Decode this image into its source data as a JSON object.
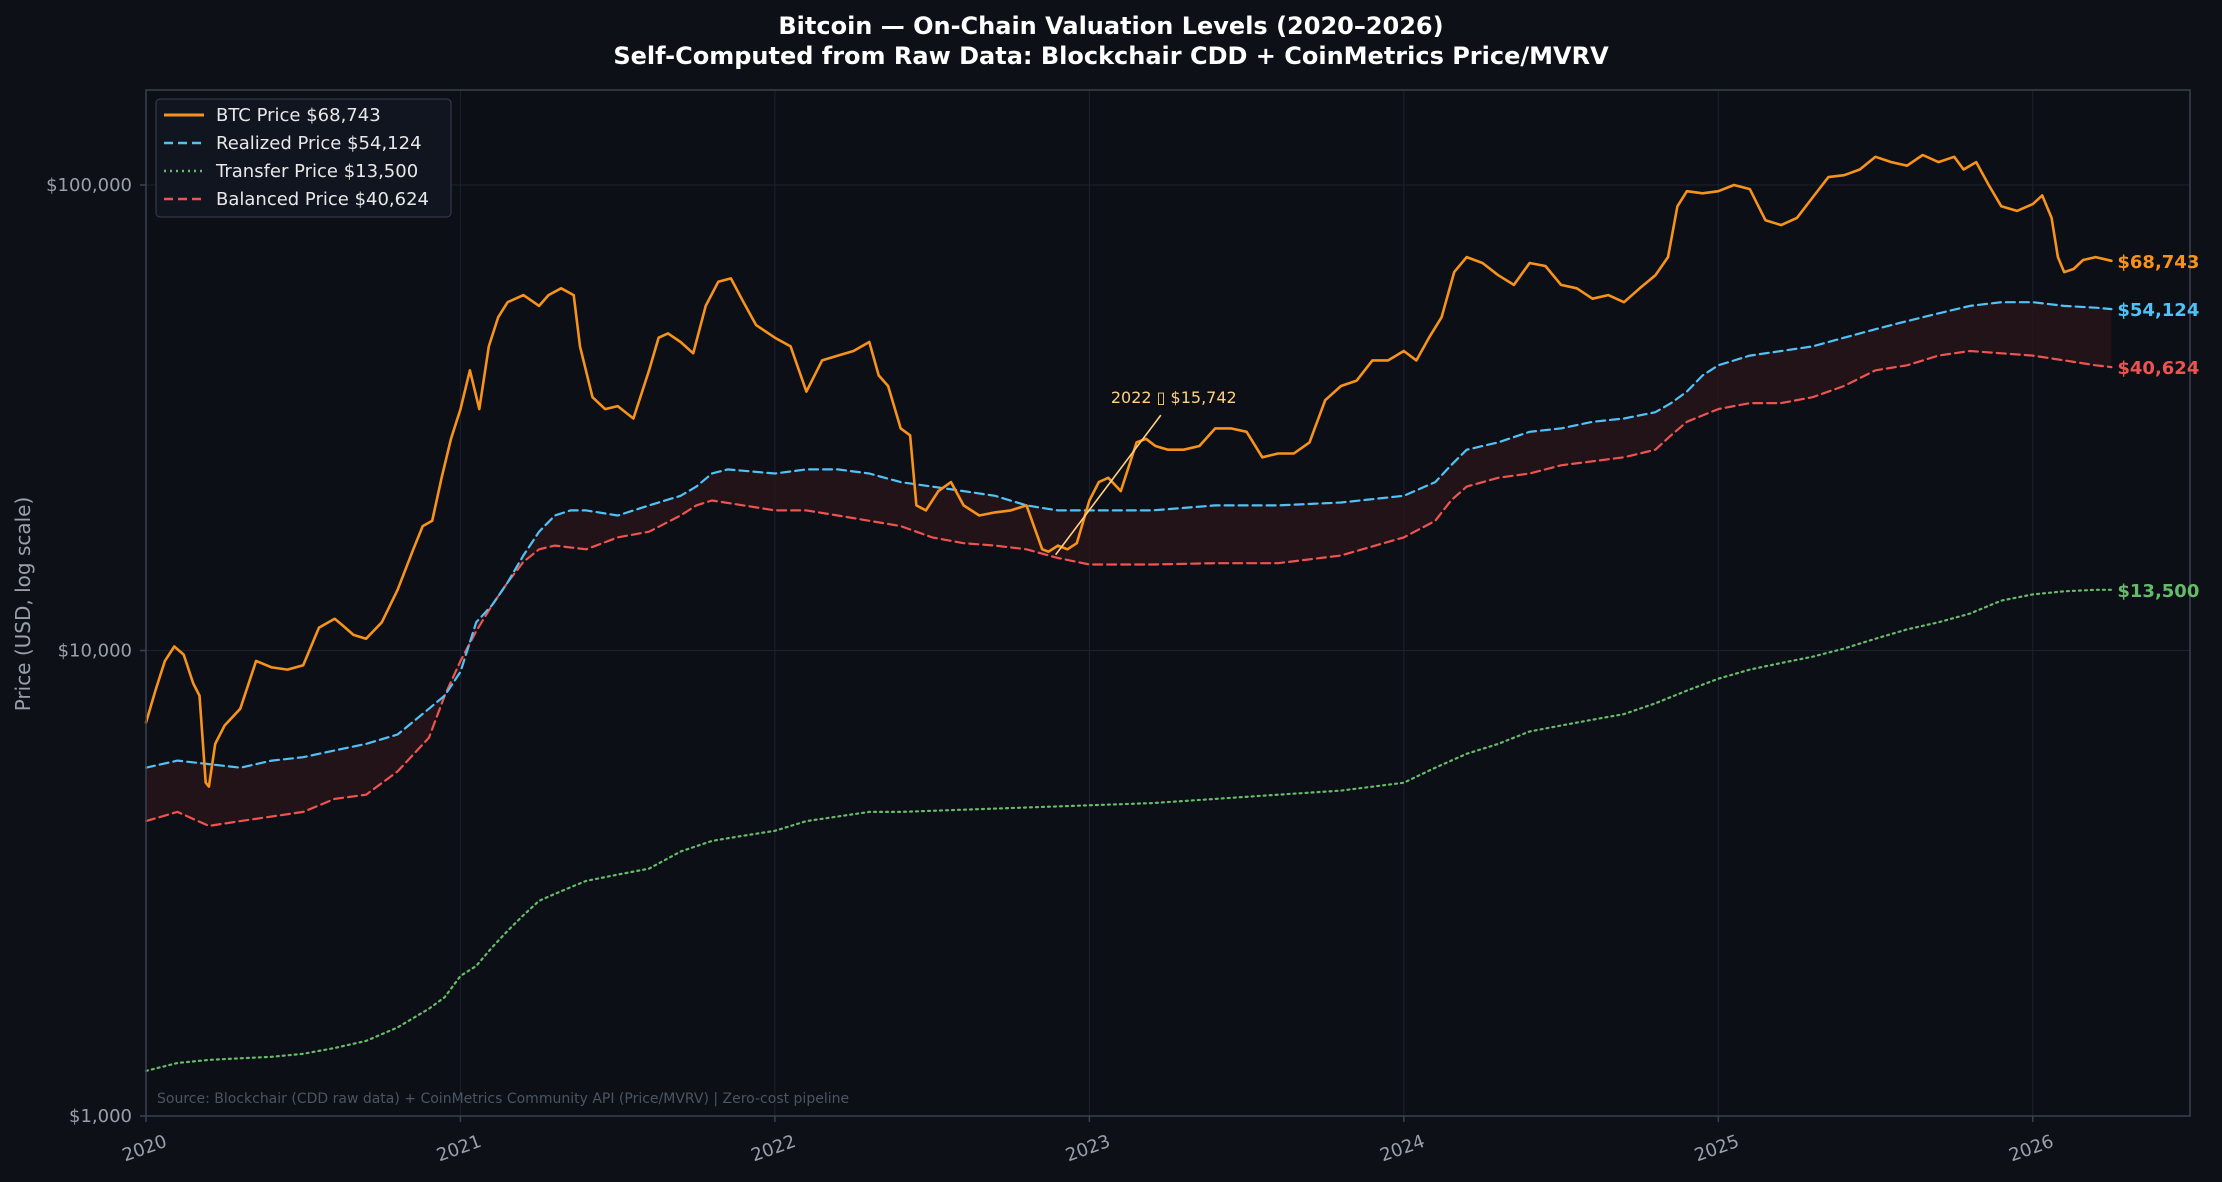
{
  "colors": {
    "background": "#0d1017",
    "axes_background": "#0c0f15",
    "grid": "#1c2230",
    "spine": "#3a4150",
    "text": "#ffffff",
    "tick": "#9aa0a8",
    "btc": "#f7931a",
    "realized": "#4fc3f7",
    "transfer": "#66bb6a",
    "balanced": "#ef5350",
    "band": "#2a151b",
    "annotation": "#ffd180",
    "source": "#4b5563"
  },
  "chart_data": {
    "type": "line",
    "title": "Bitcoin — On-Chain Valuation Levels  (2020–2026)",
    "subtitle": "Self-Computed from Raw Data: Blockchair CDD + CoinMetrics Price/MVRV",
    "ylabel": "Price (USD, log scale)",
    "xlabel": "",
    "y_scale": "log",
    "ylim": [
      1000,
      160000
    ],
    "xlim": [
      2020.0,
      2026.5
    ],
    "grid": true,
    "legend_position": "upper-left",
    "x_ticks": [
      {
        "value": 2020,
        "label": "2020"
      },
      {
        "value": 2021,
        "label": "2021"
      },
      {
        "value": 2022,
        "label": "2022"
      },
      {
        "value": 2023,
        "label": "2023"
      },
      {
        "value": 2024,
        "label": "2024"
      },
      {
        "value": 2025,
        "label": "2025"
      },
      {
        "value": 2026,
        "label": "2026"
      }
    ],
    "y_ticks": [
      {
        "value": 1000,
        "label": "$1,000"
      },
      {
        "value": 10000,
        "label": "$10,000"
      },
      {
        "value": 100000,
        "label": "$100,000"
      }
    ],
    "band": {
      "upper": "realized",
      "lower": "balanced"
    },
    "series": [
      {
        "key": "btc",
        "name": "BTC Price",
        "legend_label": "BTC Price  $68,743",
        "end_label": "$68,743",
        "style": "solid",
        "width": 2.6,
        "x": [
          2020.0,
          2020.03,
          2020.06,
          2020.09,
          2020.12,
          2020.15,
          2020.17,
          2020.19,
          2020.2,
          2020.22,
          2020.25,
          2020.3,
          2020.35,
          2020.4,
          2020.45,
          2020.5,
          2020.55,
          2020.6,
          2020.62,
          2020.66,
          2020.7,
          2020.75,
          2020.8,
          2020.85,
          2020.88,
          2020.91,
          2020.94,
          2020.97,
          2021.0,
          2021.03,
          2021.06,
          2021.09,
          2021.12,
          2021.15,
          2021.2,
          2021.25,
          2021.28,
          2021.32,
          2021.36,
          2021.38,
          2021.42,
          2021.46,
          2021.5,
          2021.55,
          2021.6,
          2021.63,
          2021.66,
          2021.7,
          2021.74,
          2021.78,
          2021.82,
          2021.86,
          2021.9,
          2021.94,
          2022.0,
          2022.05,
          2022.1,
          2022.15,
          2022.2,
          2022.25,
          2022.3,
          2022.33,
          2022.36,
          2022.4,
          2022.43,
          2022.45,
          2022.48,
          2022.52,
          2022.56,
          2022.6,
          2022.65,
          2022.7,
          2022.75,
          2022.8,
          2022.85,
          2022.87,
          2022.9,
          2022.93,
          2022.96,
          2023.0,
          2023.03,
          2023.06,
          2023.1,
          2023.15,
          2023.18,
          2023.21,
          2023.25,
          2023.3,
          2023.35,
          2023.4,
          2023.45,
          2023.5,
          2023.55,
          2023.6,
          2023.65,
          2023.7,
          2023.75,
          2023.8,
          2023.85,
          2023.9,
          2023.95,
          2024.0,
          2024.04,
          2024.08,
          2024.12,
          2024.16,
          2024.2,
          2024.25,
          2024.3,
          2024.35,
          2024.4,
          2024.45,
          2024.5,
          2024.55,
          2024.6,
          2024.65,
          2024.7,
          2024.75,
          2024.8,
          2024.84,
          2024.87,
          2024.9,
          2024.95,
          2025.0,
          2025.05,
          2025.1,
          2025.15,
          2025.2,
          2025.25,
          2025.3,
          2025.35,
          2025.4,
          2025.45,
          2025.5,
          2025.55,
          2025.6,
          2025.65,
          2025.7,
          2025.75,
          2025.78,
          2025.82,
          2025.86,
          2025.9,
          2025.95,
          2026.0,
          2026.03,
          2026.06,
          2026.08,
          2026.1,
          2026.13,
          2026.16,
          2026.2,
          2026.25
        ],
        "y": [
          7000,
          8200,
          9500,
          10200,
          9800,
          8500,
          8000,
          5200,
          5100,
          6300,
          6900,
          7500,
          9500,
          9200,
          9100,
          9300,
          11200,
          11700,
          11400,
          10800,
          10600,
          11500,
          13500,
          16500,
          18500,
          19000,
          23500,
          28500,
          33000,
          40000,
          33000,
          45000,
          52000,
          56000,
          58000,
          55000,
          58000,
          60000,
          58000,
          45000,
          35000,
          33000,
          33500,
          31500,
          40000,
          47000,
          48000,
          46000,
          43500,
          55000,
          62000,
          63000,
          56000,
          50000,
          47000,
          45000,
          36000,
          42000,
          43000,
          44000,
          46000,
          39000,
          37000,
          30000,
          29000,
          20500,
          20000,
          22000,
          23000,
          20500,
          19500,
          19800,
          20000,
          20500,
          16500,
          16300,
          16800,
          16500,
          17000,
          21000,
          23000,
          23500,
          22000,
          28000,
          28500,
          27500,
          27000,
          27000,
          27500,
          30000,
          30000,
          29500,
          26000,
          26500,
          26500,
          28000,
          34500,
          37000,
          38000,
          42000,
          42000,
          44000,
          42000,
          47000,
          52000,
          65000,
          70000,
          68000,
          64000,
          61000,
          68000,
          67000,
          61000,
          60000,
          57000,
          58000,
          56000,
          60000,
          64000,
          70000,
          90000,
          97000,
          96000,
          97000,
          100000,
          98000,
          84000,
          82000,
          85000,
          94000,
          104000,
          105000,
          108000,
          115000,
          112000,
          110000,
          116000,
          112000,
          115000,
          108000,
          112000,
          100000,
          90000,
          88000,
          91000,
          95000,
          85000,
          70000,
          65000,
          66000,
          69000,
          70000,
          68743
        ]
      },
      {
        "key": "realized",
        "name": "Realized Price",
        "legend_label": "Realized Price  $54,124",
        "end_label": "$54,124",
        "style": "dashed",
        "width": 2.2,
        "x": [
          2020.0,
          2020.1,
          2020.2,
          2020.3,
          2020.4,
          2020.5,
          2020.6,
          2020.7,
          2020.8,
          2020.9,
          2020.95,
          2021.0,
          2021.05,
          2021.1,
          2021.15,
          2021.2,
          2021.25,
          2021.3,
          2021.35,
          2021.4,
          2021.5,
          2021.6,
          2021.7,
          2021.75,
          2021.8,
          2021.85,
          2022.0,
          2022.1,
          2022.2,
          2022.3,
          2022.4,
          2022.5,
          2022.6,
          2022.7,
          2022.8,
          2022.9,
          2023.0,
          2023.2,
          2023.4,
          2023.6,
          2023.8,
          2024.0,
          2024.1,
          2024.15,
          2024.2,
          2024.3,
          2024.4,
          2024.5,
          2024.6,
          2024.7,
          2024.8,
          2024.85,
          2024.9,
          2024.95,
          2025.0,
          2025.1,
          2025.2,
          2025.3,
          2025.4,
          2025.5,
          2025.6,
          2025.7,
          2025.8,
          2025.9,
          2026.0,
          2026.1,
          2026.2,
          2026.25
        ],
        "y": [
          5600,
          5800,
          5700,
          5600,
          5800,
          5900,
          6100,
          6300,
          6600,
          7500,
          8000,
          9000,
          11500,
          12500,
          14000,
          16000,
          18000,
          19500,
          20000,
          20000,
          19500,
          20500,
          21500,
          22500,
          24000,
          24500,
          24000,
          24500,
          24500,
          24000,
          23000,
          22500,
          22000,
          21500,
          20500,
          20000,
          20000,
          20000,
          20500,
          20500,
          20800,
          21500,
          23000,
          25000,
          27000,
          28000,
          29500,
          30000,
          31000,
          31500,
          32500,
          34000,
          36000,
          39000,
          41000,
          43000,
          44000,
          45000,
          47000,
          49000,
          51000,
          53000,
          55000,
          56000,
          56000,
          55000,
          54500,
          54124
        ]
      },
      {
        "key": "balanced",
        "name": "Balanced Price",
        "legend_label": "Balanced Price  $40,624",
        "end_label": "$40,624",
        "style": "dashed",
        "width": 2.2,
        "x": [
          2020.0,
          2020.1,
          2020.2,
          2020.3,
          2020.4,
          2020.5,
          2020.6,
          2020.7,
          2020.8,
          2020.9,
          2020.95,
          2021.0,
          2021.05,
          2021.1,
          2021.15,
          2021.2,
          2021.25,
          2021.3,
          2021.4,
          2021.5,
          2021.6,
          2021.7,
          2021.75,
          2021.8,
          2021.9,
          2022.0,
          2022.1,
          2022.2,
          2022.3,
          2022.4,
          2022.5,
          2022.6,
          2022.7,
          2022.8,
          2022.9,
          2023.0,
          2023.2,
          2023.4,
          2023.6,
          2023.8,
          2024.0,
          2024.1,
          2024.15,
          2024.2,
          2024.3,
          2024.4,
          2024.5,
          2024.6,
          2024.7,
          2024.8,
          2024.85,
          2024.9,
          2025.0,
          2025.1,
          2025.2,
          2025.3,
          2025.4,
          2025.5,
          2025.6,
          2025.7,
          2025.8,
          2025.9,
          2026.0,
          2026.1,
          2026.2,
          2026.25
        ],
        "y": [
          4300,
          4500,
          4200,
          4300,
          4400,
          4500,
          4800,
          4900,
          5500,
          6500,
          8000,
          9500,
          11000,
          12500,
          14000,
          15500,
          16500,
          16800,
          16500,
          17500,
          18000,
          19500,
          20500,
          21000,
          20500,
          20000,
          20000,
          19500,
          19000,
          18500,
          17500,
          17000,
          16800,
          16500,
          15800,
          15300,
          15300,
          15400,
          15400,
          16000,
          17500,
          19000,
          21000,
          22500,
          23500,
          24000,
          25000,
          25500,
          26000,
          27000,
          29000,
          31000,
          33000,
          34000,
          34000,
          35000,
          37000,
          40000,
          41000,
          43000,
          44000,
          43500,
          43000,
          42000,
          41000,
          40624
        ]
      },
      {
        "key": "transfer",
        "name": "Transfer Price",
        "legend_label": "Transfer Price  $13,500",
        "end_label": "$13,500",
        "style": "dotted",
        "width": 2.2,
        "x": [
          2020.0,
          2020.1,
          2020.2,
          2020.3,
          2020.4,
          2020.5,
          2020.6,
          2020.7,
          2020.8,
          2020.9,
          2020.95,
          2021.0,
          2021.05,
          2021.1,
          2021.15,
          2021.2,
          2021.25,
          2021.3,
          2021.35,
          2021.4,
          2021.5,
          2021.6,
          2021.7,
          2021.8,
          2021.9,
          2022.0,
          2022.1,
          2022.2,
          2022.3,
          2022.4,
          2022.6,
          2022.8,
          2023.0,
          2023.2,
          2023.4,
          2023.6,
          2023.8,
          2024.0,
          2024.1,
          2024.2,
          2024.3,
          2024.4,
          2024.5,
          2024.6,
          2024.7,
          2024.8,
          2024.9,
          2025.0,
          2025.1,
          2025.2,
          2025.3,
          2025.4,
          2025.5,
          2025.6,
          2025.7,
          2025.8,
          2025.9,
          2026.0,
          2026.1,
          2026.2,
          2026.25
        ],
        "y": [
          1250,
          1300,
          1320,
          1330,
          1340,
          1360,
          1400,
          1450,
          1550,
          1700,
          1800,
          2000,
          2100,
          2300,
          2500,
          2700,
          2900,
          3000,
          3100,
          3200,
          3300,
          3400,
          3700,
          3900,
          4000,
          4100,
          4300,
          4400,
          4500,
          4500,
          4550,
          4600,
          4650,
          4700,
          4800,
          4900,
          5000,
          5200,
          5600,
          6000,
          6300,
          6700,
          6900,
          7100,
          7300,
          7700,
          8200,
          8700,
          9100,
          9400,
          9700,
          10100,
          10600,
          11100,
          11500,
          12000,
          12800,
          13200,
          13400,
          13500,
          13500
        ]
      }
    ],
    "annotation": {
      "text": "2022 ▯ $15,742",
      "point_x": 2022.88,
      "point_y": 15742,
      "text_x": 2023.1,
      "text_y": 34000
    },
    "source_note": "Source: Blockchair (CDD raw data) + CoinMetrics Community API (Price/MVRV)  |  Zero-cost pipeline"
  }
}
